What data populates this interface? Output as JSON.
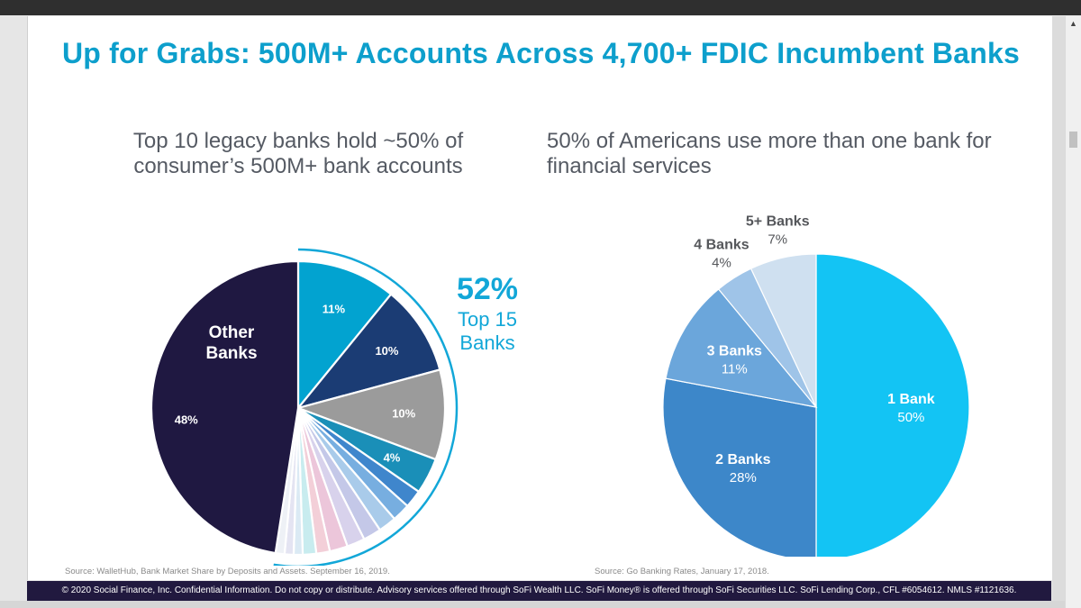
{
  "slide": {
    "title": "Up for Grabs: 500M+ Accounts Across 4,700+ FDIC Incumbent Banks",
    "footer": "© 2020 Social Finance, Inc. Confidential Information. Do not copy or distribute. Advisory services offered through SoFi Wealth LLC. SoFi Money® is offered through SoFi Securities LLC. SoFi Lending Corp., CFL #6054612. NMLS #1121636."
  },
  "left": {
    "subtitle": "Top 10 legacy banks hold ~50% of consumer’s 500M+ bank accounts",
    "source": "Source: WalletHub, Bank Market Share by Deposits and Assets. September 16, 2019.",
    "callout": {
      "value": "52%",
      "label_line1": "Top 15",
      "label_line2": "Banks",
      "color": "#12a7d8"
    }
  },
  "right": {
    "subtitle": "50% of Americans use more than one bank for financial services",
    "source": "Source: Go Banking Rates, January 17, 2018."
  },
  "chart_data": [
    {
      "type": "pie",
      "title": "Top 10 legacy banks hold ~50% of consumer’s 500M+ bank accounts",
      "values": [
        11,
        10,
        10,
        4,
        2,
        2,
        2,
        2,
        2,
        2,
        1.5,
        1.5,
        1,
        1,
        1,
        48
      ],
      "colors": [
        "#02a3d0",
        "#1b3c74",
        "#9b9b9b",
        "#1a8fb8",
        "#3f86cc",
        "#77aee0",
        "#a9cbea",
        "#c4c8e8",
        "#d8d2ec",
        "#ecc6da",
        "#f3cfd8",
        "#c8ecef",
        "#dbeaf4",
        "#e4e4f2",
        "#eef1f6",
        "#1f1841"
      ],
      "labels": [
        "11%",
        "10%",
        "10%",
        "4%",
        "",
        "",
        "",
        "",
        "",
        "",
        "",
        "",
        "",
        "",
        "",
        "48%"
      ],
      "name_labels": [
        "",
        "",
        "",
        "",
        "",
        "",
        "",
        "",
        "",
        "",
        "",
        "",
        "",
        "",
        "",
        "Other Banks"
      ],
      "start_angle_deg": 0
    },
    {
      "type": "pie",
      "title": "50% of Americans use more than one bank for financial services",
      "categories": [
        "1 Bank",
        "2 Banks",
        "3 Banks",
        "4 Banks",
        "5+ Banks"
      ],
      "values": [
        50,
        28,
        11,
        4,
        7
      ],
      "labels": [
        "50%",
        "28%",
        "11%",
        "4%",
        "7%"
      ],
      "colors": [
        "#13c4f4",
        "#3d87c9",
        "#6ba6db",
        "#9fc4e8",
        "#cfe0f0"
      ],
      "start_angle_deg": 0
    }
  ]
}
